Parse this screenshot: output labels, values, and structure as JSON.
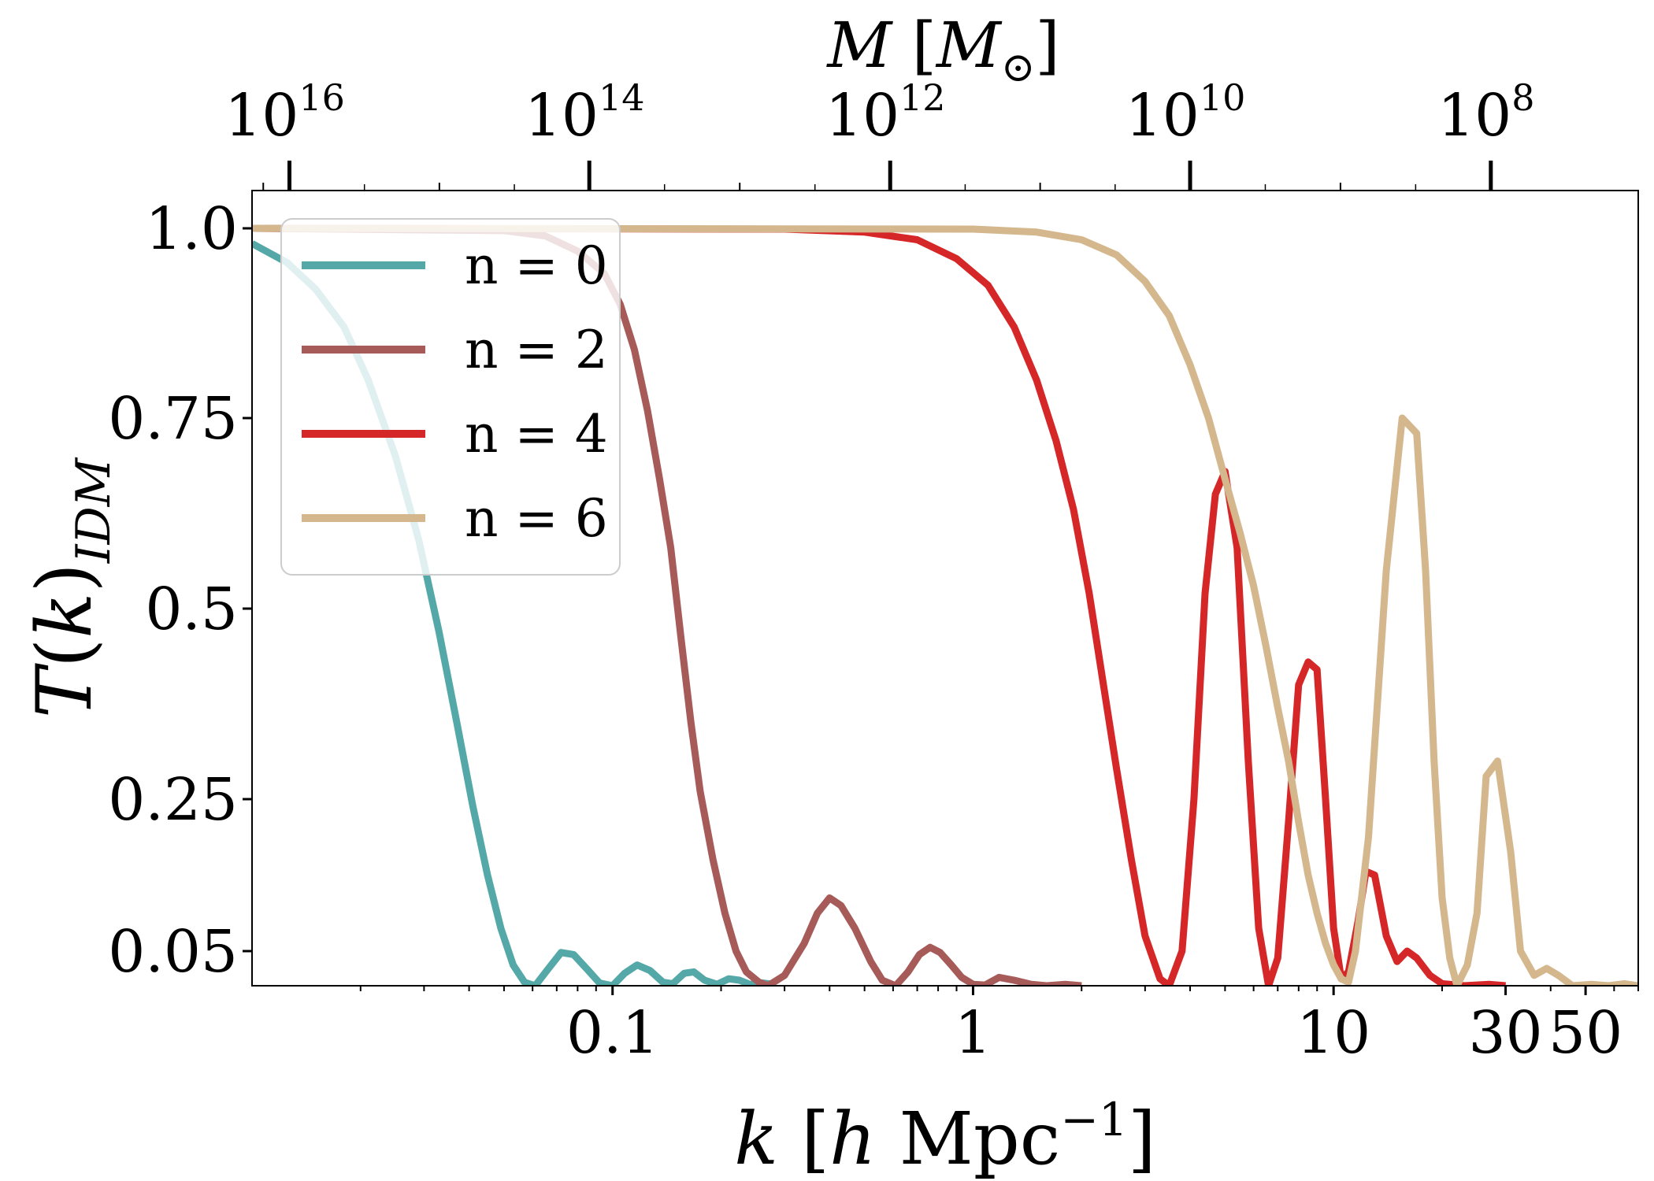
{
  "chart_data": {
    "type": "line",
    "x_scale": "log",
    "y_scale": "piecewise-linear",
    "xlim": [
      0.01,
      70
    ],
    "ylim": [
      0.0,
      1.05
    ],
    "ylabel": "T(k)_IDM",
    "xlabel": "k [h Mpc^-1]",
    "top_axis_label": "M [M_⊙]",
    "x_ticks": [
      {
        "value": 0.1,
        "label": "0.1"
      },
      {
        "value": 1,
        "label": "1"
      },
      {
        "value": 10,
        "label": "10"
      },
      {
        "value": 30,
        "label": "30"
      },
      {
        "value": 50,
        "label": "50"
      }
    ],
    "y_ticks": [
      {
        "value": 0.05,
        "label": "0.05"
      },
      {
        "value": 0.25,
        "label": "0.25"
      },
      {
        "value": 0.5,
        "label": "0.5"
      },
      {
        "value": 0.75,
        "label": "0.75"
      },
      {
        "value": 1.0,
        "label": "1.0"
      }
    ],
    "top_ticks": [
      {
        "k": 0.0127,
        "base": "10",
        "exp": "16"
      },
      {
        "k": 0.0862,
        "base": "10",
        "exp": "14"
      },
      {
        "k": 0.589,
        "base": "10",
        "exp": "12"
      },
      {
        "k": 4.0,
        "base": "10",
        "exp": "10"
      },
      {
        "k": 27.3,
        "base": "10",
        "exp": "8"
      }
    ],
    "legend": {
      "position": "upper-left"
    },
    "series": [
      {
        "name": "n = 0",
        "color": "#55a8a8",
        "points": [
          [
            0.01,
            0.98
          ],
          [
            0.0125,
            0.955
          ],
          [
            0.015,
            0.92
          ],
          [
            0.018,
            0.87
          ],
          [
            0.021,
            0.8
          ],
          [
            0.025,
            0.7
          ],
          [
            0.029,
            0.59
          ],
          [
            0.033,
            0.47
          ],
          [
            0.037,
            0.35
          ],
          [
            0.041,
            0.24
          ],
          [
            0.045,
            0.15
          ],
          [
            0.049,
            0.08
          ],
          [
            0.053,
            0.03
          ],
          [
            0.057,
            0.005
          ],
          [
            0.061,
            0.0
          ],
          [
            0.066,
            0.023
          ],
          [
            0.072,
            0.048
          ],
          [
            0.078,
            0.045
          ],
          [
            0.085,
            0.024
          ],
          [
            0.092,
            0.004
          ],
          [
            0.1,
            0.0
          ],
          [
            0.108,
            0.018
          ],
          [
            0.117,
            0.03
          ],
          [
            0.127,
            0.022
          ],
          [
            0.138,
            0.005
          ],
          [
            0.147,
            0.003
          ],
          [
            0.158,
            0.018
          ],
          [
            0.168,
            0.02
          ],
          [
            0.18,
            0.008
          ],
          [
            0.195,
            0.002
          ],
          [
            0.21,
            0.01
          ],
          [
            0.225,
            0.008
          ],
          [
            0.24,
            0.002
          ],
          [
            0.26,
            0.004
          ],
          [
            0.28,
            0.002
          ]
        ]
      },
      {
        "name": "n = 2",
        "color": "#a65b59",
        "points": [
          [
            0.01,
            1.0
          ],
          [
            0.05,
            0.997
          ],
          [
            0.065,
            0.99
          ],
          [
            0.08,
            0.97
          ],
          [
            0.095,
            0.94
          ],
          [
            0.105,
            0.9
          ],
          [
            0.115,
            0.84
          ],
          [
            0.125,
            0.76
          ],
          [
            0.135,
            0.67
          ],
          [
            0.145,
            0.58
          ],
          [
            0.155,
            0.46
          ],
          [
            0.165,
            0.35
          ],
          [
            0.175,
            0.26
          ],
          [
            0.19,
            0.17
          ],
          [
            0.205,
            0.1
          ],
          [
            0.22,
            0.05
          ],
          [
            0.235,
            0.02
          ],
          [
            0.255,
            0.005
          ],
          [
            0.27,
            0.0
          ],
          [
            0.3,
            0.015
          ],
          [
            0.34,
            0.06
          ],
          [
            0.37,
            0.1
          ],
          [
            0.4,
            0.12
          ],
          [
            0.43,
            0.11
          ],
          [
            0.47,
            0.08
          ],
          [
            0.52,
            0.035
          ],
          [
            0.56,
            0.008
          ],
          [
            0.61,
            0.0
          ],
          [
            0.66,
            0.02
          ],
          [
            0.71,
            0.045
          ],
          [
            0.76,
            0.055
          ],
          [
            0.81,
            0.048
          ],
          [
            0.87,
            0.03
          ],
          [
            0.93,
            0.012
          ],
          [
            1.0,
            0.002
          ],
          [
            1.08,
            0.001
          ],
          [
            1.18,
            0.012
          ],
          [
            1.3,
            0.008
          ],
          [
            1.45,
            0.002
          ],
          [
            1.6,
            0.0
          ],
          [
            1.8,
            0.002
          ],
          [
            2.0,
            0.0
          ]
        ]
      },
      {
        "name": "n = 4",
        "color": "#d62728",
        "points": [
          [
            0.01,
            1.0
          ],
          [
            0.3,
            0.999
          ],
          [
            0.5,
            0.995
          ],
          [
            0.7,
            0.985
          ],
          [
            0.9,
            0.96
          ],
          [
            1.1,
            0.925
          ],
          [
            1.3,
            0.87
          ],
          [
            1.5,
            0.8
          ],
          [
            1.7,
            0.72
          ],
          [
            1.9,
            0.63
          ],
          [
            2.1,
            0.52
          ],
          [
            2.3,
            0.4
          ],
          [
            2.5,
            0.29
          ],
          [
            2.75,
            0.17
          ],
          [
            3.0,
            0.07
          ],
          [
            3.3,
            0.01
          ],
          [
            3.5,
            0.0
          ],
          [
            3.8,
            0.05
          ],
          [
            4.1,
            0.25
          ],
          [
            4.4,
            0.52
          ],
          [
            4.7,
            0.65
          ],
          [
            5.0,
            0.68
          ],
          [
            5.4,
            0.58
          ],
          [
            5.8,
            0.3
          ],
          [
            6.2,
            0.08
          ],
          [
            6.6,
            0.0
          ],
          [
            7.0,
            0.04
          ],
          [
            7.5,
            0.22
          ],
          [
            8.0,
            0.4
          ],
          [
            8.5,
            0.43
          ],
          [
            9.0,
            0.42
          ],
          [
            9.5,
            0.25
          ],
          [
            10.0,
            0.08
          ],
          [
            10.5,
            0.01
          ],
          [
            11.0,
            0.02
          ],
          [
            11.7,
            0.09
          ],
          [
            12.3,
            0.155
          ],
          [
            13.0,
            0.15
          ],
          [
            14.0,
            0.07
          ],
          [
            15.0,
            0.035
          ],
          [
            16.0,
            0.05
          ],
          [
            17.0,
            0.04
          ],
          [
            18.5,
            0.015
          ],
          [
            20.0,
            0.003
          ],
          [
            23.0,
            0.0
          ],
          [
            27.0,
            0.002
          ],
          [
            30.0,
            0.0
          ]
        ]
      },
      {
        "name": "n = 6",
        "color": "#d4b78c",
        "points": [
          [
            0.01,
            1.0
          ],
          [
            1.0,
            0.999
          ],
          [
            1.5,
            0.995
          ],
          [
            2.0,
            0.985
          ],
          [
            2.5,
            0.965
          ],
          [
            3.0,
            0.93
          ],
          [
            3.5,
            0.885
          ],
          [
            4.0,
            0.82
          ],
          [
            4.5,
            0.75
          ],
          [
            5.0,
            0.67
          ],
          [
            5.5,
            0.6
          ],
          [
            6.0,
            0.53
          ],
          [
            6.5,
            0.45
          ],
          [
            7.0,
            0.37
          ],
          [
            7.5,
            0.3
          ],
          [
            8.0,
            0.22
          ],
          [
            8.5,
            0.15
          ],
          [
            9.0,
            0.1
          ],
          [
            9.5,
            0.06
          ],
          [
            10.0,
            0.03
          ],
          [
            10.5,
            0.01
          ],
          [
            11.0,
            0.005
          ],
          [
            11.5,
            0.05
          ],
          [
            12.5,
            0.2
          ],
          [
            14.0,
            0.55
          ],
          [
            15.5,
            0.75
          ],
          [
            17.0,
            0.73
          ],
          [
            18.0,
            0.55
          ],
          [
            19.0,
            0.3
          ],
          [
            20.0,
            0.12
          ],
          [
            21.0,
            0.04
          ],
          [
            22.0,
            0.0
          ],
          [
            23.5,
            0.03
          ],
          [
            25.0,
            0.1
          ],
          [
            26.5,
            0.28
          ],
          [
            28.5,
            0.3
          ],
          [
            31.0,
            0.18
          ],
          [
            33.0,
            0.05
          ],
          [
            36.0,
            0.015
          ],
          [
            39.0,
            0.025
          ],
          [
            42.0,
            0.015
          ],
          [
            46.0,
            0.0
          ],
          [
            52.0,
            0.002
          ],
          [
            58.0,
            0.0
          ],
          [
            64.0,
            0.003
          ],
          [
            70.0,
            0.0
          ]
        ]
      }
    ]
  }
}
